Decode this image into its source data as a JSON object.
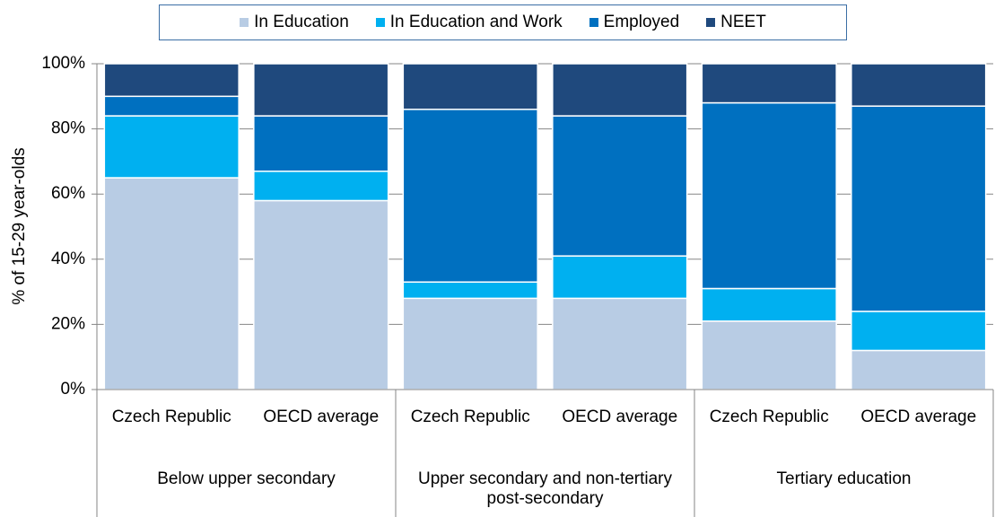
{
  "chart_data": {
    "type": "stacked-bar",
    "y_label": "% of 15-29 year-olds",
    "categories": [
      "Czech Republic",
      "OECD average",
      "Czech Republic",
      "OECD average",
      "Czech Republic",
      "OECD average"
    ],
    "category_groups": [
      "Below upper secondary",
      "Upper secondary and non-tertiary post-secondary",
      "Tertiary education"
    ],
    "series": [
      {
        "name": "In Education",
        "color": "#b8cce4",
        "values": [
          65,
          58,
          28,
          28,
          21,
          12
        ]
      },
      {
        "name": "In Education and Work",
        "color": "#00b0f0",
        "values": [
          19,
          9,
          5,
          13,
          10,
          12
        ]
      },
      {
        "name": "Employed",
        "color": "#0070c0",
        "values": [
          6,
          17,
          53,
          43,
          57,
          63
        ]
      },
      {
        "name": "NEET",
        "color": "#1f497d",
        "values": [
          10,
          16,
          14,
          16,
          12,
          13
        ]
      }
    ],
    "ylim": [
      0,
      100
    ],
    "yticks": [
      {
        "value": 0,
        "label": "0%"
      },
      {
        "value": 20,
        "label": "20%"
      },
      {
        "value": 40,
        "label": "40%"
      },
      {
        "value": 60,
        "label": "60%"
      },
      {
        "value": 80,
        "label": "80%"
      },
      {
        "value": 100,
        "label": "100%"
      }
    ],
    "grid": true
  }
}
